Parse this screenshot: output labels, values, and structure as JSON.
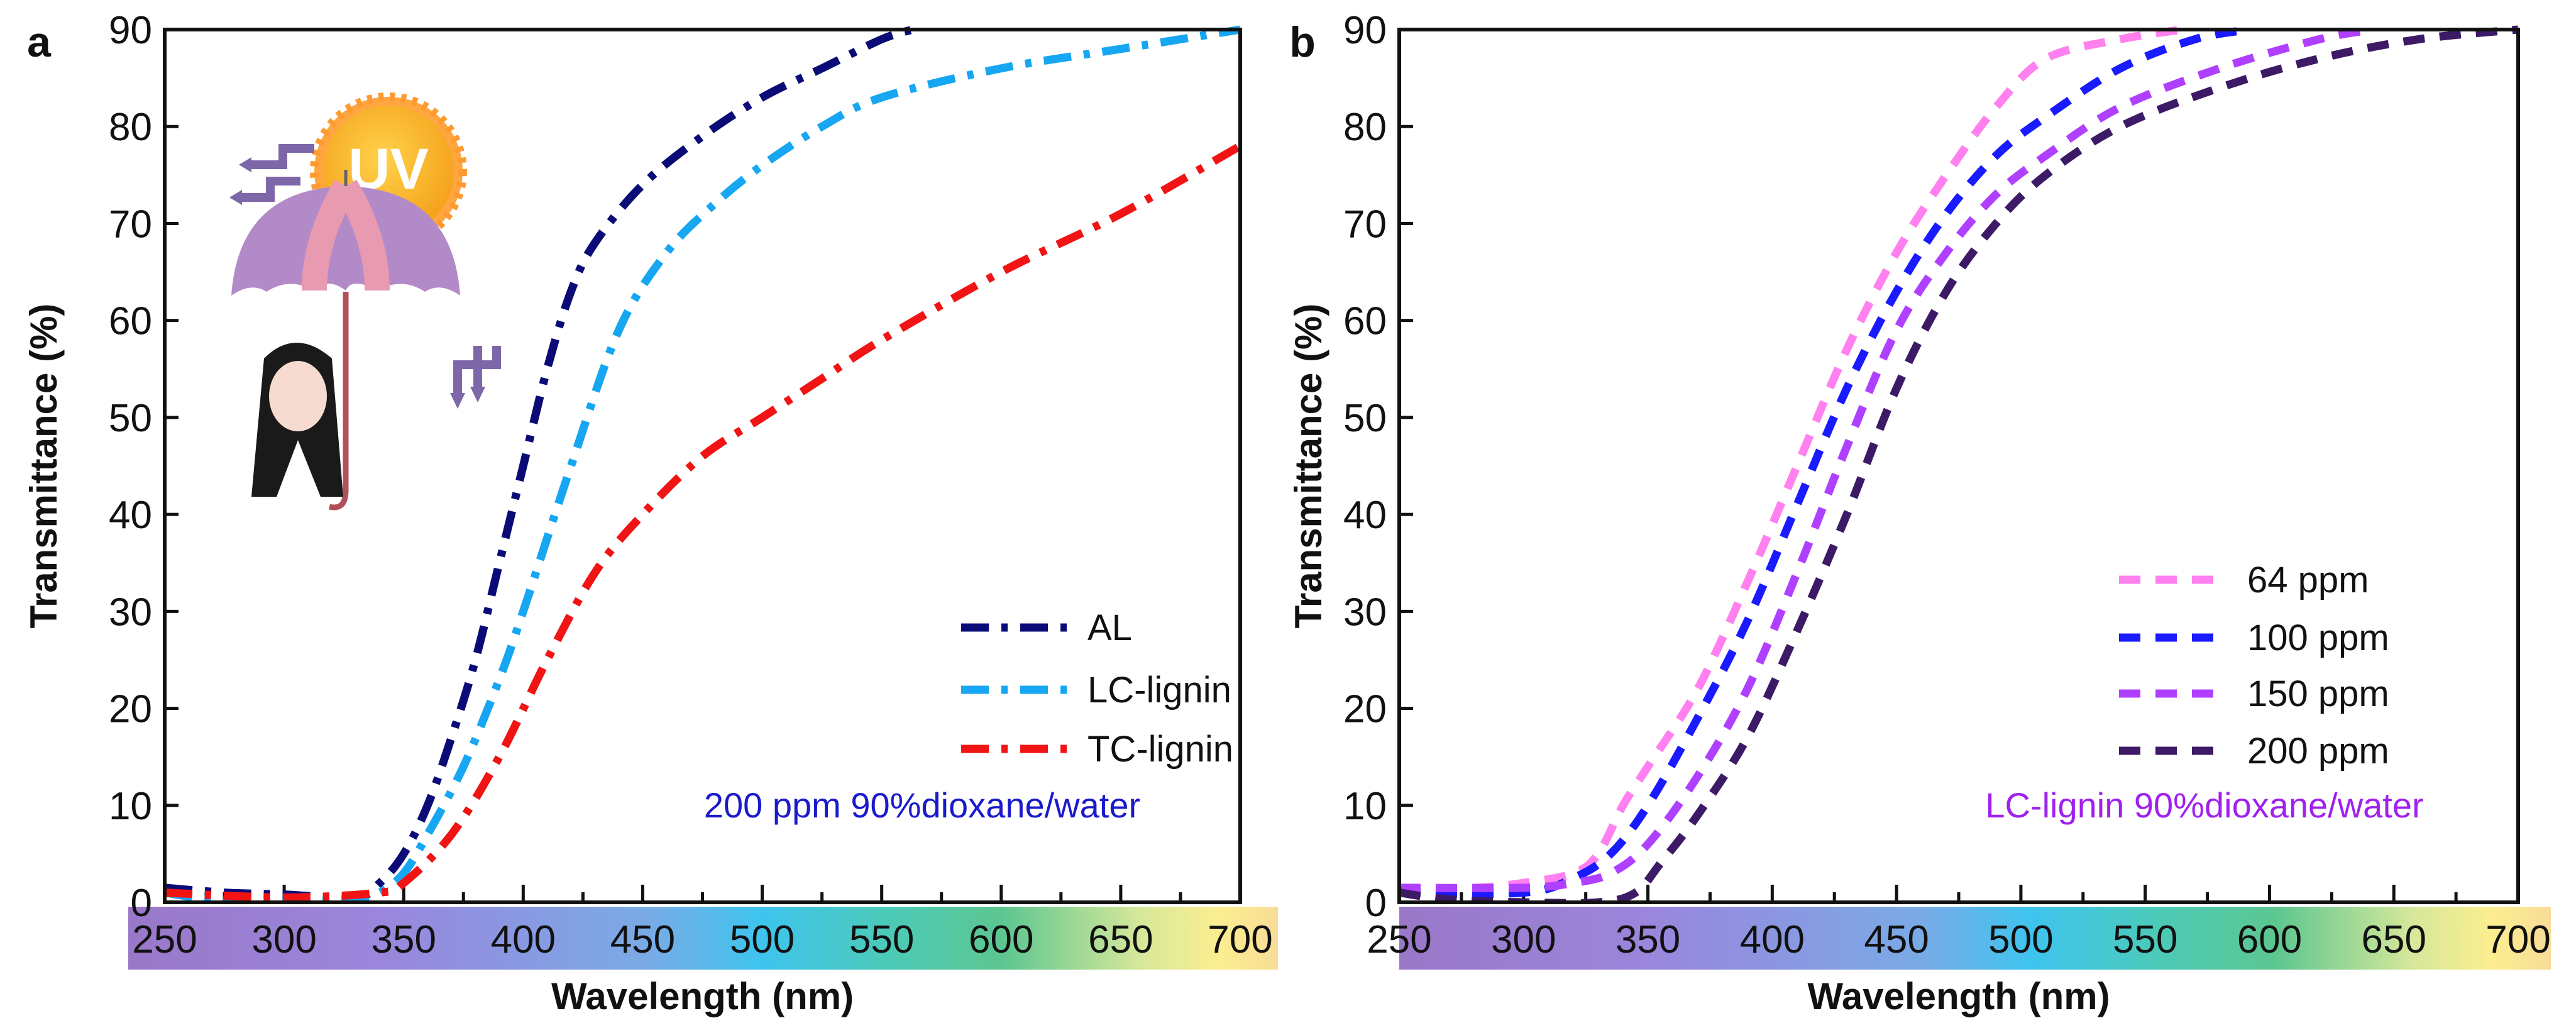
{
  "chart_data": [
    {
      "panel": "a",
      "type": "line",
      "xlabel": "Wavelength (nm)",
      "ylabel": "Transmittance (%)",
      "xlim": [
        250,
        700
      ],
      "ylim": [
        0,
        90
      ],
      "xticks": [
        250,
        300,
        350,
        400,
        450,
        500,
        550,
        600,
        650,
        700
      ],
      "yticks": [
        0,
        10,
        20,
        30,
        40,
        50,
        60,
        70,
        80,
        90
      ],
      "annotation": "200 ppm 90%dioxane/water",
      "annotation_color": "#1a1acc",
      "inset_text": "UV",
      "legend_position": "bottom-right",
      "series": [
        {
          "name": "AL",
          "color": "#0b0b78",
          "style": "dash-dot",
          "x": [
            250,
            275,
            300,
            330,
            340,
            350,
            360,
            370,
            380,
            390,
            400,
            410,
            420,
            430,
            450,
            475,
            500,
            525,
            550,
            563
          ],
          "y": [
            1.5,
            1,
            0.8,
            0.5,
            2,
            5,
            10,
            17,
            25,
            35,
            45,
            55,
            63,
            68,
            74,
            79,
            83,
            86,
            89,
            90
          ]
        },
        {
          "name": "LC-lignin",
          "color": "#16a6f2",
          "style": "dash-dot",
          "x": [
            250,
            270,
            300,
            330,
            340,
            350,
            360,
            375,
            390,
            400,
            420,
            440,
            460,
            480,
            500,
            525,
            550,
            600,
            650,
            700
          ],
          "y": [
            1,
            0.3,
            0,
            0.3,
            1,
            3,
            7,
            14,
            23,
            30,
            45,
            59,
            67,
            72,
            76,
            80,
            83,
            86,
            88,
            90
          ]
        },
        {
          "name": "TC-lignin",
          "color": "#f01414",
          "style": "dash-dot",
          "x": [
            250,
            300,
            340,
            350,
            370,
            390,
            410,
            430,
            450,
            475,
            500,
            525,
            550,
            600,
            650,
            700
          ],
          "y": [
            1,
            0.5,
            1,
            2,
            7,
            15,
            25,
            34,
            40,
            46,
            50,
            54,
            58,
            65,
            71,
            78
          ]
        }
      ]
    },
    {
      "panel": "b",
      "type": "line",
      "xlabel": "Wavelength (nm)",
      "ylabel": "Transmittance (%)",
      "xlim": [
        250,
        700
      ],
      "ylim": [
        0,
        90
      ],
      "xticks": [
        250,
        300,
        350,
        400,
        450,
        500,
        550,
        600,
        650,
        700
      ],
      "yticks": [
        0,
        10,
        20,
        30,
        40,
        50,
        60,
        70,
        80,
        90
      ],
      "annotation": "LC-lignin 90%dioxane/water",
      "annotation_color": "#a020f0",
      "legend_position": "bottom-right",
      "series": [
        {
          "name": "64 ppm",
          "color": "#ff80ee",
          "style": "dash",
          "x": [
            250,
            280,
            300,
            320,
            330,
            340,
            350,
            370,
            390,
            410,
            430,
            450,
            470,
            490,
            510,
            540,
            565
          ],
          "y": [
            1.5,
            1.5,
            2,
            3,
            5,
            10,
            14,
            22,
            33,
            45,
            57,
            67,
            75,
            82,
            87,
            89,
            90
          ]
        },
        {
          "name": "100 ppm",
          "color": "#1a1aff",
          "style": "dash",
          "x": [
            250,
            300,
            320,
            335,
            350,
            370,
            390,
            410,
            430,
            450,
            470,
            490,
            510,
            540,
            570,
            592
          ],
          "y": [
            1,
            1,
            2.5,
            5,
            10,
            19,
            29,
            41,
            53,
            63,
            71,
            77,
            81,
            86,
            89,
            90
          ]
        },
        {
          "name": "150 ppm",
          "color": "#b040ff",
          "style": "dash",
          "x": [
            250,
            300,
            320,
            335,
            350,
            370,
            390,
            410,
            430,
            450,
            470,
            490,
            510,
            540,
            580,
            620,
            642
          ],
          "y": [
            1.5,
            1.5,
            2,
            3,
            6,
            13,
            22,
            34,
            47,
            59,
            67,
            73,
            77,
            82,
            86,
            89,
            90
          ]
        },
        {
          "name": "200 ppm",
          "color": "#3d1a66",
          "style": "dash",
          "x": [
            250,
            270,
            300,
            330,
            345,
            355,
            370,
            390,
            410,
            430,
            450,
            470,
            490,
            510,
            540,
            580,
            620,
            660,
            700
          ],
          "y": [
            1,
            0.3,
            0,
            0,
            1,
            4,
            9,
            17,
            28,
            40,
            53,
            63,
            70,
            75,
            80,
            84,
            87,
            89,
            90
          ]
        }
      ]
    }
  ]
}
